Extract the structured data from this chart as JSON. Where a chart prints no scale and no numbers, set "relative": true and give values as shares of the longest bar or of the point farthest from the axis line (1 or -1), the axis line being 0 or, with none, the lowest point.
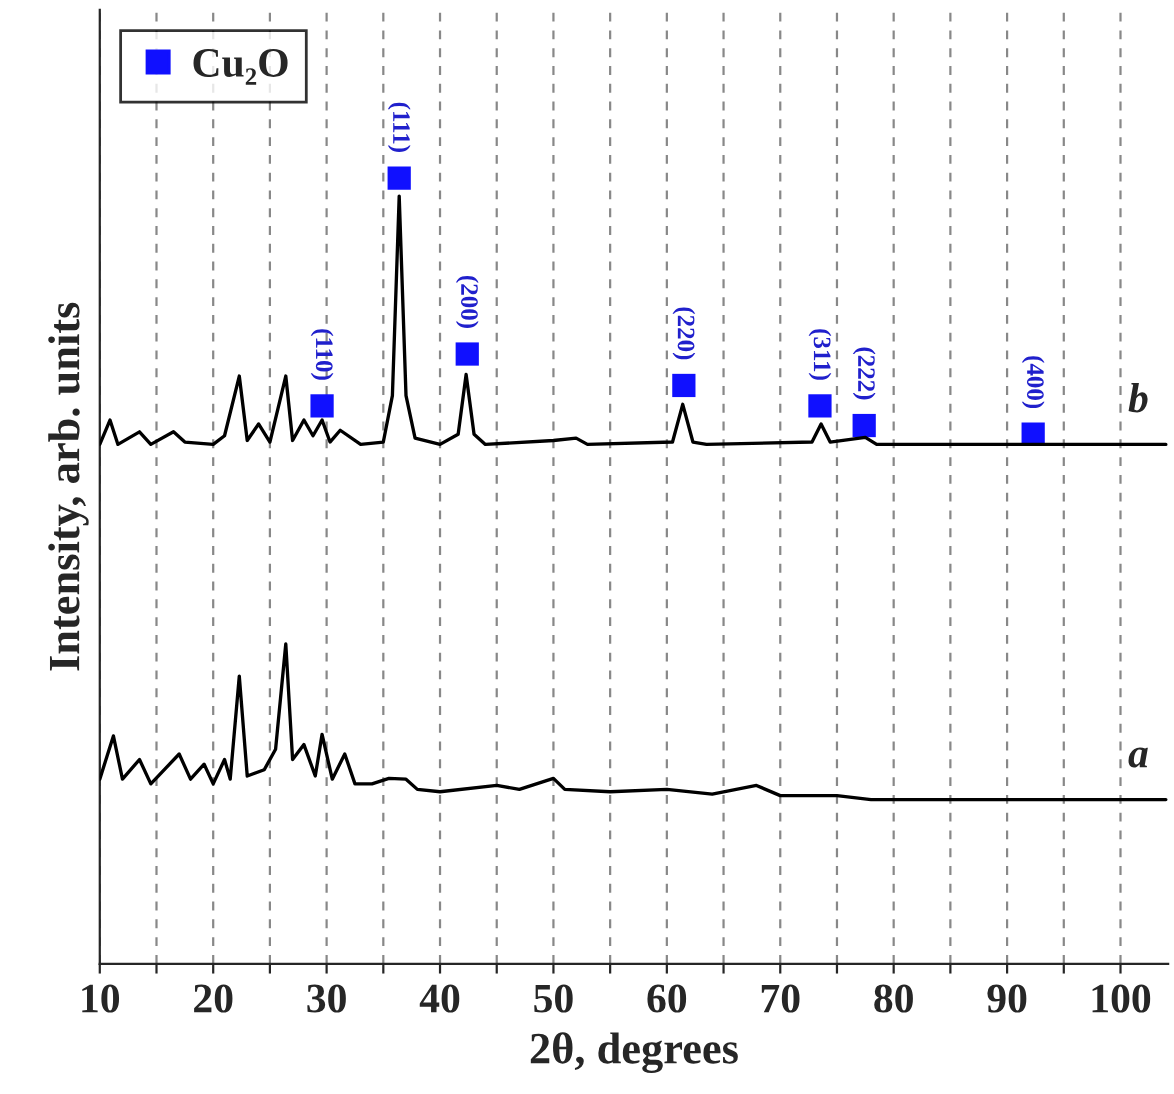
{
  "chart_data": {
    "type": "line",
    "relative": true,
    "xlabel": "2θ, degrees",
    "ylabel": "Intensity, arb. units",
    "xlim": [
      10,
      104.2
    ],
    "xticks": [
      10,
      {
        "value": 15,
        "label": null
      },
      20,
      {
        "value": 25,
        "label": null
      },
      30,
      {
        "value": 35,
        "label": null
      },
      40,
      {
        "value": 45,
        "label": null
      },
      50,
      {
        "value": 55,
        "label": null
      },
      60,
      {
        "value": 65,
        "label": null
      },
      70,
      {
        "value": 75,
        "label": null
      },
      80,
      {
        "value": 85,
        "label": null
      },
      90,
      {
        "value": 95,
        "label": null
      },
      100
    ],
    "grid": "x",
    "legend": "top left",
    "tick_labels": "x",
    "series": [
      {
        "name": "a",
        "color": "#000000",
        "x": [
          10,
          11.2,
          12,
          13.5,
          14.5,
          17,
          18,
          19.2,
          20,
          21,
          21.5,
          22.3,
          23,
          24.5,
          25.5,
          26.4,
          27,
          28,
          29,
          29.6,
          30.5,
          31.6,
          32.5,
          34,
          35.5,
          37,
          38,
          40,
          45,
          47,
          50,
          51,
          55,
          60,
          64,
          67.9,
          70,
          75,
          78,
          85,
          90,
          104
        ],
        "values": [
          0.235,
          0.29,
          0.235,
          0.26,
          0.229,
          0.267,
          0.235,
          0.254,
          0.229,
          0.26,
          0.235,
          0.366,
          0.239,
          0.247,
          0.273,
          0.407,
          0.26,
          0.279,
          0.239,
          0.292,
          0.235,
          0.267,
          0.229,
          0.229,
          0.236,
          0.235,
          0.222,
          0.219,
          0.227,
          0.222,
          0.236,
          0.222,
          0.219,
          0.222,
          0.216,
          0.227,
          0.214,
          0.214,
          0.209,
          0.209,
          0.209,
          0.209
        ]
      },
      {
        "name": "b",
        "color": "#000000",
        "x": [
          10,
          10.9,
          11.6,
          13.5,
          14.5,
          16.5,
          17.5,
          20,
          21,
          22.3,
          23,
          24,
          25,
          26.4,
          27,
          28,
          28.8,
          29.6,
          30.3,
          31.2,
          33,
          35,
          35.8,
          36.4,
          37,
          37.8,
          40,
          41.6,
          42.3,
          43,
          44,
          50,
          52,
          53,
          60.5,
          61.4,
          62.3,
          63.5,
          72.8,
          73.6,
          74.4,
          77.5,
          78.5,
          92.4,
          104
        ],
        "values": [
          0.661,
          0.692,
          0.661,
          0.677,
          0.661,
          0.677,
          0.664,
          0.661,
          0.672,
          0.748,
          0.666,
          0.687,
          0.664,
          0.748,
          0.666,
          0.692,
          0.672,
          0.692,
          0.664,
          0.679,
          0.661,
          0.664,
          0.723,
          0.977,
          0.723,
          0.669,
          0.661,
          0.674,
          0.75,
          0.674,
          0.661,
          0.666,
          0.669,
          0.661,
          0.664,
          0.712,
          0.664,
          0.661,
          0.664,
          0.687,
          0.664,
          0.67,
          0.661,
          0.661,
          0.661
        ]
      },
      {
        "name": "Cu₂O",
        "type": "scatter",
        "marker": "square",
        "color": "#1010ff",
        "x": [
          29.6,
          36.4,
          42.4,
          61.5,
          73.5,
          77.4,
          92.3
        ],
        "values": [
          0.71,
          1.0,
          0.776,
          0.736,
          0.71,
          0.685,
          0.674
        ]
      }
    ],
    "annotations": [
      {
        "text": "(110)",
        "x": 29.6,
        "y": 0.71
      },
      {
        "text": "(111)",
        "x": 36.4,
        "y": 1.0
      },
      {
        "text": "(200)",
        "x": 42.4,
        "y": 0.776
      },
      {
        "text": "(220)",
        "x": 61.5,
        "y": 0.736
      },
      {
        "text": "(311)",
        "x": 73.5,
        "y": 0.71
      },
      {
        "text": "(222)",
        "x": 77.4,
        "y": 0.685
      },
      {
        "text": "(400)",
        "x": 92.3,
        "y": 0.674
      }
    ]
  }
}
